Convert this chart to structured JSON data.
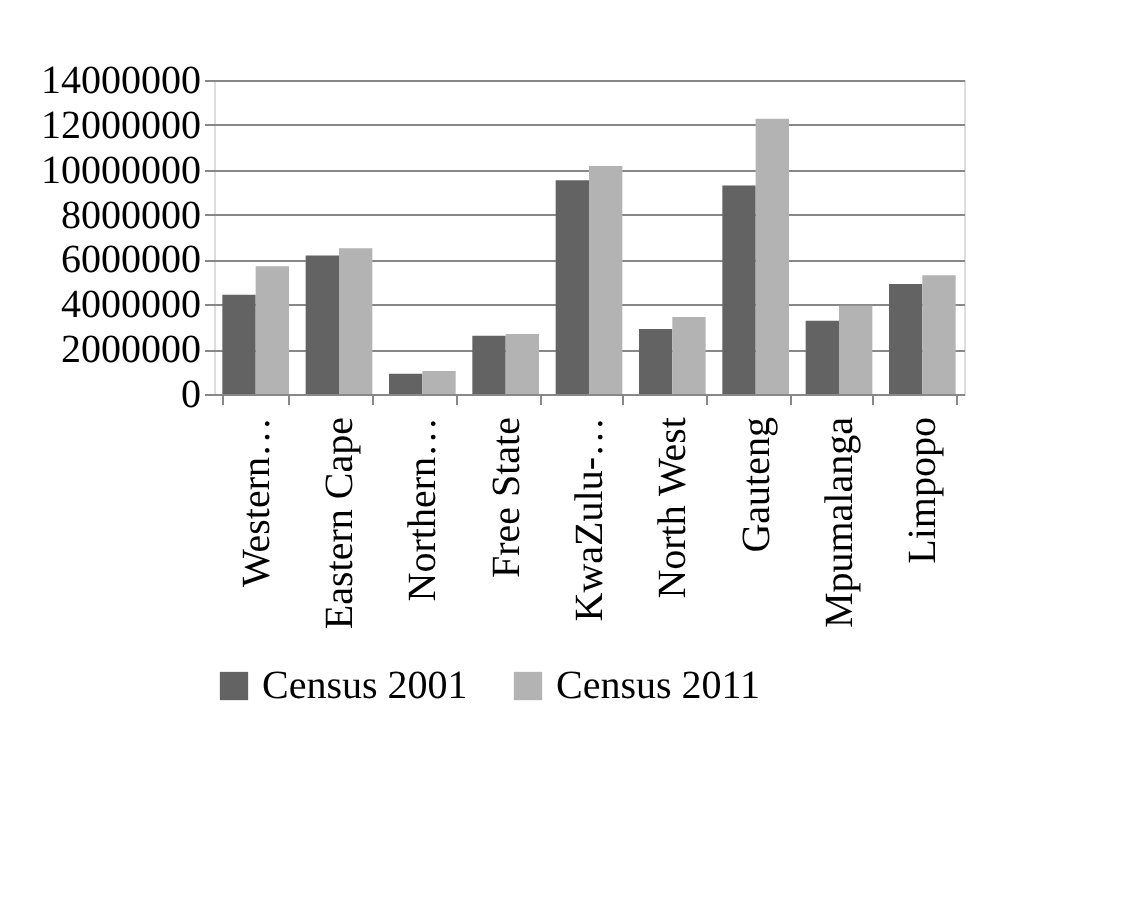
{
  "chart_data": {
    "type": "bar",
    "categories": [
      "Western…",
      "Eastern Cape",
      "Northern…",
      "Free State",
      "KwaZulu-…",
      "North West",
      "Gauteng",
      "Mpumalanga",
      "Limpopo"
    ],
    "series": [
      {
        "name": "Census 2001",
        "color": "#636363",
        "values": [
          4430000,
          6170000,
          900000,
          2600000,
          9530000,
          2900000,
          9300000,
          3270000,
          4900000
        ]
      },
      {
        "name": "Census 2011",
        "color": "#b3b3b3",
        "values": [
          5700000,
          6500000,
          1030000,
          2670000,
          10170000,
          3430000,
          12270000,
          3930000,
          5300000
        ]
      }
    ],
    "ylim": [
      0,
      14000000
    ],
    "yticks": [
      0,
      2000000,
      4000000,
      6000000,
      8000000,
      10000000,
      12000000,
      14000000
    ],
    "grid": "y",
    "legend": "bottom"
  }
}
